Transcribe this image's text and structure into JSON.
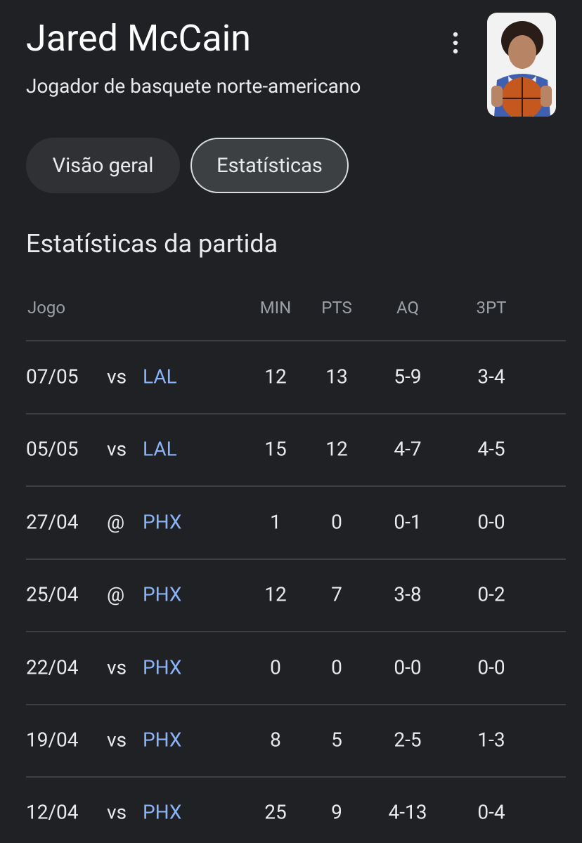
{
  "header": {
    "title": "Jared McCain",
    "subtitle": "Jogador de basquete norte-americano"
  },
  "tabs": [
    "Visão geral",
    "Estatísticas"
  ],
  "section_title": "Estatísticas da partida",
  "table": {
    "columns": [
      "Jogo",
      "MIN",
      "PTS",
      "AQ",
      "3PT"
    ],
    "rows": [
      [
        "07/05",
        "vs",
        "LAL",
        12,
        13,
        "5-9",
        "3-4"
      ],
      [
        "05/05",
        "vs",
        "LAL",
        15,
        12,
        "4-7",
        "4-5"
      ],
      [
        "27/04",
        "@",
        "PHX",
        1,
        0,
        "0-1",
        "0-0"
      ],
      [
        "25/04",
        "@",
        "PHX",
        12,
        7,
        "3-8",
        "0-2"
      ],
      [
        "22/04",
        "vs",
        "PHX",
        0,
        0,
        "0-0",
        "0-0"
      ],
      [
        "19/04",
        "vs",
        "PHX",
        8,
        5,
        "2-5",
        "1-3"
      ],
      [
        "12/04",
        "vs",
        "PHX",
        25,
        9,
        "4-13",
        "0-4"
      ]
    ]
  }
}
